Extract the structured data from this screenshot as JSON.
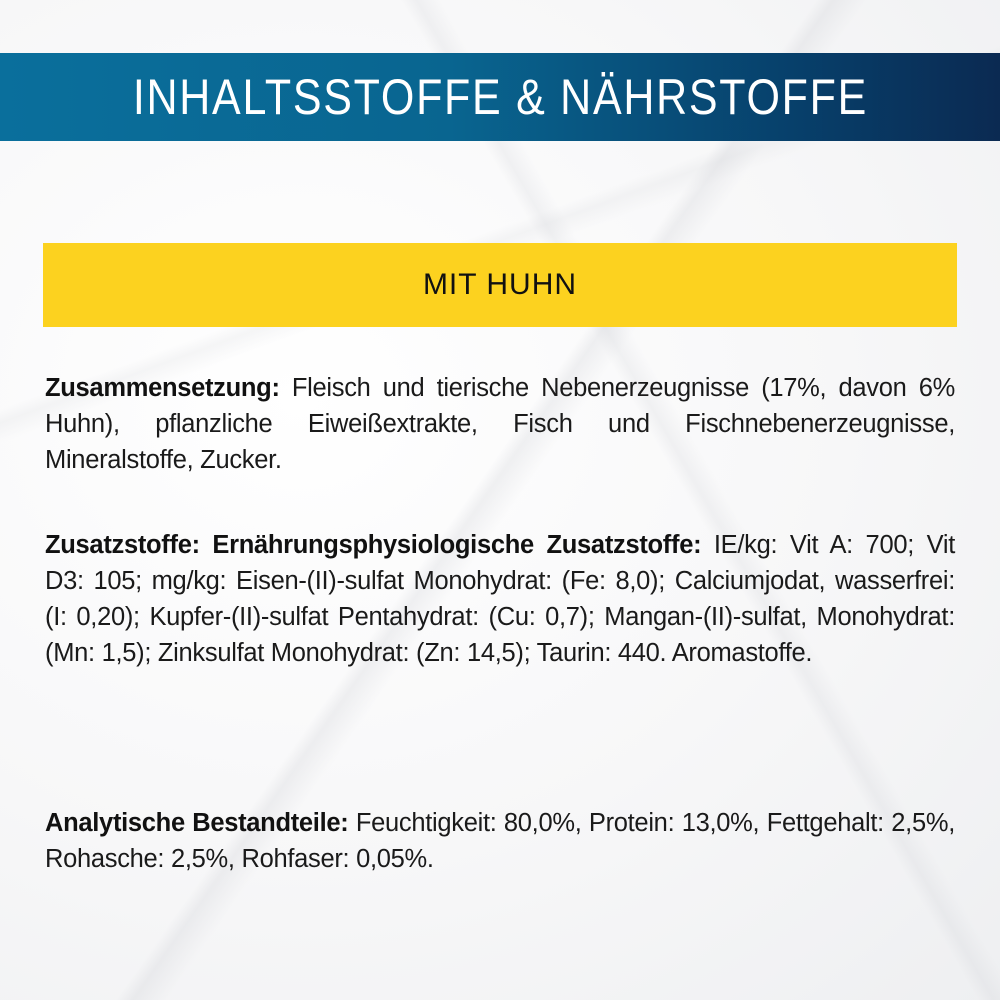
{
  "header": {
    "title": "INHALTSSTOFFE & NÄHRSTOFFE",
    "colors": {
      "gradient_start": "#0a6f9c",
      "gradient_end": "#0b2a52"
    }
  },
  "variant": {
    "label": "MIT HUHN",
    "color": "#fcd21f"
  },
  "sections": [
    {
      "heading": "Zusammensetzung:",
      "text": " Fleisch und tierische Nebenerzeugnisse (17%, davon 6% Huhn), pflanzliche Eiweißextrakte, Fisch und Fischnebenerzeugnisse, Mineralstoffe, Zucker."
    },
    {
      "heading": "Zusatzstoffe: Ernährungsphysiologische Zusatzstoffe:",
      "text": " IE/kg: Vit A: 700; Vit D3: 105; mg/kg: Eisen-(II)-sulfat Monohydrat: (Fe: 8,0); Calciumjodat, wasserfrei: (I: 0,20); Kupfer-(II)-sulfat Pentahydrat: (Cu: 0,7); Mangan-(II)-sulfat, Monohydrat: (Mn: 1,5); Zinksulfat Monohydrat: (Zn: 14,5); Taurin: 440. Aromastoffe."
    },
    {
      "heading": "Analytische Bestandteile:",
      "text": " Feuchtigkeit: 80,0%, Protein: 13,0%, Fettgehalt: 2,5%, Rohasche: 2,5%, Rohfaser: 0,05%."
    }
  ]
}
